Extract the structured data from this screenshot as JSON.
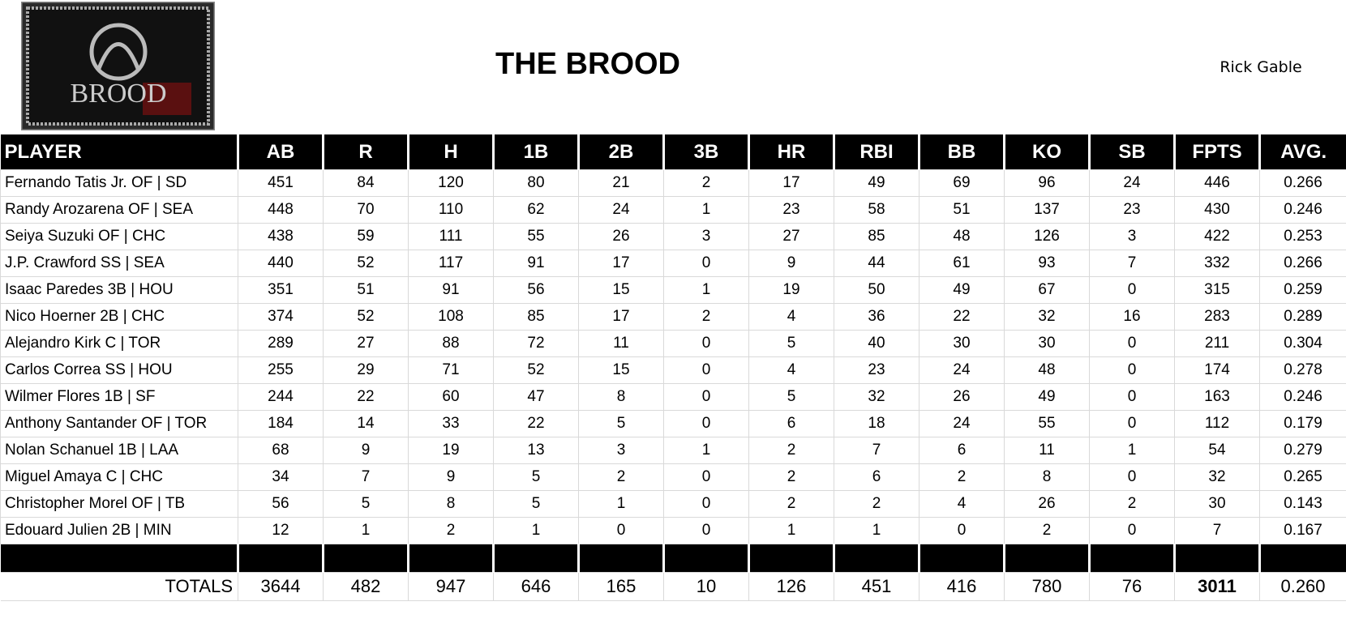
{
  "header": {
    "logo_text": "BROOD",
    "title": "THE BROOD",
    "owner": "Rick Gable"
  },
  "table": {
    "columns": [
      "PLAYER",
      "AB",
      "R",
      "H",
      "1B",
      "2B",
      "3B",
      "HR",
      "RBI",
      "BB",
      "KO",
      "SB",
      "FPTS",
      "AVG."
    ],
    "rows": [
      [
        "Fernando Tatis Jr. OF | SD",
        "451",
        "84",
        "120",
        "80",
        "21",
        "2",
        "17",
        "49",
        "69",
        "96",
        "24",
        "446",
        "0.266"
      ],
      [
        "Randy Arozarena OF | SEA",
        "448",
        "70",
        "110",
        "62",
        "24",
        "1",
        "23",
        "58",
        "51",
        "137",
        "23",
        "430",
        "0.246"
      ],
      [
        "Seiya Suzuki OF | CHC",
        "438",
        "59",
        "111",
        "55",
        "26",
        "3",
        "27",
        "85",
        "48",
        "126",
        "3",
        "422",
        "0.253"
      ],
      [
        "J.P. Crawford SS | SEA",
        "440",
        "52",
        "117",
        "91",
        "17",
        "0",
        "9",
        "44",
        "61",
        "93",
        "7",
        "332",
        "0.266"
      ],
      [
        "Isaac Paredes 3B | HOU",
        "351",
        "51",
        "91",
        "56",
        "15",
        "1",
        "19",
        "50",
        "49",
        "67",
        "0",
        "315",
        "0.259"
      ],
      [
        "Nico Hoerner 2B | CHC",
        "374",
        "52",
        "108",
        "85",
        "17",
        "2",
        "4",
        "36",
        "22",
        "32",
        "16",
        "283",
        "0.289"
      ],
      [
        "Alejandro Kirk C | TOR",
        "289",
        "27",
        "88",
        "72",
        "11",
        "0",
        "5",
        "40",
        "30",
        "30",
        "0",
        "211",
        "0.304"
      ],
      [
        "Carlos Correa SS | HOU",
        "255",
        "29",
        "71",
        "52",
        "15",
        "0",
        "4",
        "23",
        "24",
        "48",
        "0",
        "174",
        "0.278"
      ],
      [
        "Wilmer Flores 1B | SF",
        "244",
        "22",
        "60",
        "47",
        "8",
        "0",
        "5",
        "32",
        "26",
        "49",
        "0",
        "163",
        "0.246"
      ],
      [
        "Anthony Santander OF | TOR",
        "184",
        "14",
        "33",
        "22",
        "5",
        "0",
        "6",
        "18",
        "24",
        "55",
        "0",
        "112",
        "0.179"
      ],
      [
        "Nolan Schanuel 1B | LAA",
        "68",
        "9",
        "19",
        "13",
        "3",
        "1",
        "2",
        "7",
        "6",
        "11",
        "1",
        "54",
        "0.279"
      ],
      [
        "Miguel Amaya C | CHC",
        "34",
        "7",
        "9",
        "5",
        "2",
        "0",
        "2",
        "6",
        "2",
        "8",
        "0",
        "32",
        "0.265"
      ],
      [
        "Christopher Morel OF | TB",
        "56",
        "5",
        "8",
        "5",
        "1",
        "0",
        "2",
        "2",
        "4",
        "26",
        "2",
        "30",
        "0.143"
      ],
      [
        "Edouard Julien 2B | MIN",
        "12",
        "1",
        "2",
        "1",
        "0",
        "0",
        "1",
        "1",
        "0",
        "2",
        "0",
        "7",
        "0.167"
      ]
    ],
    "totals": [
      "TOTALS",
      "3644",
      "482",
      "947",
      "646",
      "165",
      "10",
      "126",
      "451",
      "416",
      "780",
      "76",
      "3011",
      "0.260"
    ]
  }
}
